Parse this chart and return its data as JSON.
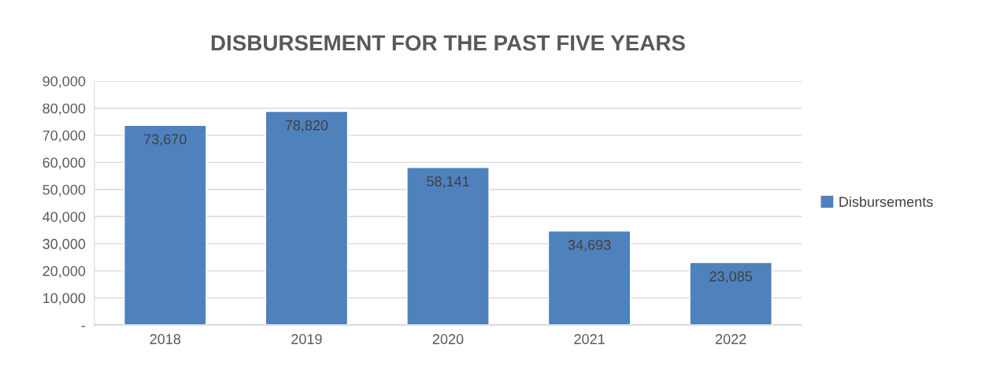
{
  "chart_data": {
    "type": "bar",
    "title": "DISBURSEMENT FOR THE PAST FIVE YEARS",
    "categories": [
      "2018",
      "2019",
      "2020",
      "2021",
      "2022"
    ],
    "series": [
      {
        "name": "Disbursements",
        "color": "#4f81bd",
        "values": [
          73670,
          78820,
          58141,
          34693,
          23085
        ]
      }
    ],
    "value_labels": [
      "73,670",
      "78,820",
      "58,141",
      "34,693",
      "23,085"
    ],
    "ylim": [
      0,
      90000
    ],
    "yticks": [
      {
        "value": 0,
        "label": "-"
      },
      {
        "value": 10000,
        "label": "10,000"
      },
      {
        "value": 20000,
        "label": "20,000"
      },
      {
        "value": 30000,
        "label": "30,000"
      },
      {
        "value": 40000,
        "label": "40,000"
      },
      {
        "value": 50000,
        "label": "50,000"
      },
      {
        "value": 60000,
        "label": "60,000"
      },
      {
        "value": 70000,
        "label": "70,000"
      },
      {
        "value": 80000,
        "label": "80,000"
      },
      {
        "value": 90000,
        "label": "90,000"
      }
    ],
    "grid": "y",
    "legend": "right"
  }
}
